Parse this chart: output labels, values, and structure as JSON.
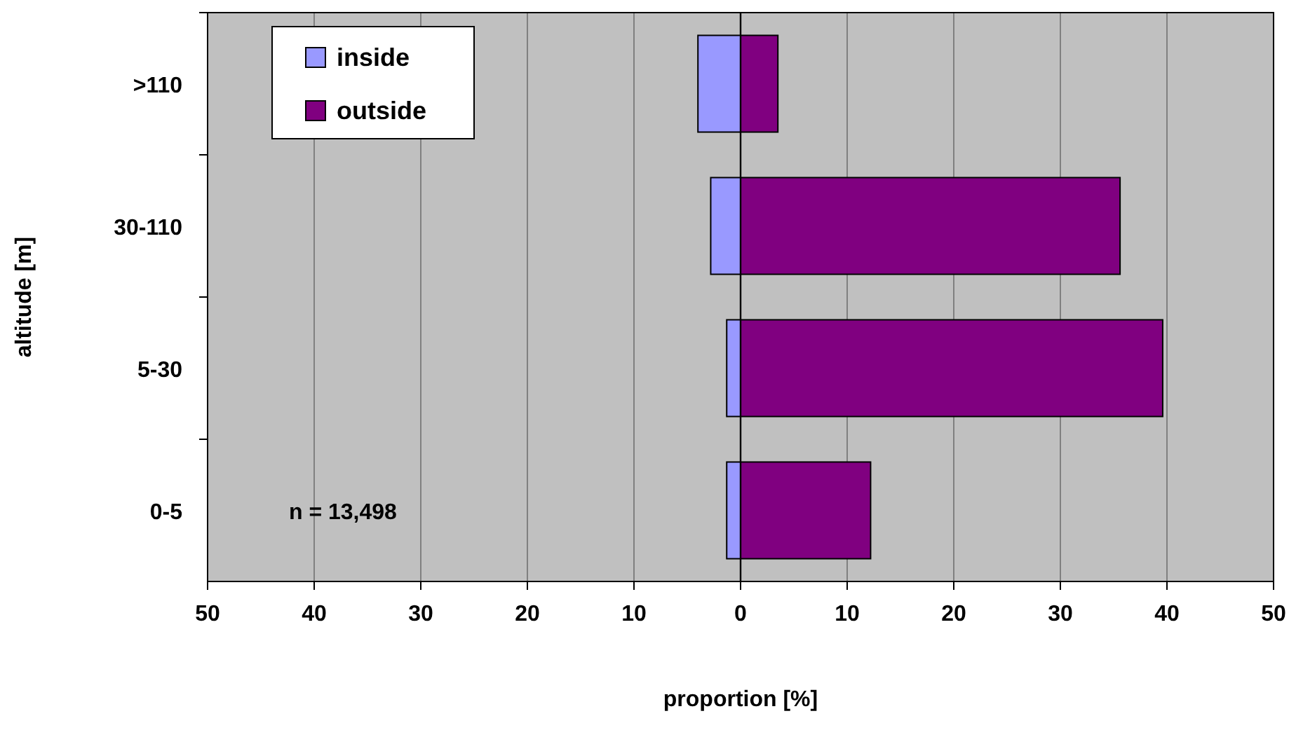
{
  "chart_data": {
    "type": "bar",
    "orientation": "horizontal",
    "stacked": true,
    "xlabel": "proportion [%]",
    "ylabel": "altitude [m]",
    "categories": [
      ">110",
      "30-110",
      "5-30",
      "0-5"
    ],
    "series": [
      {
        "name": "inside",
        "color": "#9999ff",
        "values": [
          -4.0,
          -2.8,
          -1.3,
          -1.3
        ]
      },
      {
        "name": "outside",
        "color": "#800080",
        "values": [
          3.5,
          35.6,
          39.6,
          12.2
        ]
      }
    ],
    "xlim": [
      -50,
      50
    ],
    "xticks": [
      {
        "value": -50,
        "label": "50"
      },
      {
        "value": -40,
        "label": "40"
      },
      {
        "value": -30,
        "label": "30"
      },
      {
        "value": -20,
        "label": "20"
      },
      {
        "value": -10,
        "label": "10"
      },
      0,
      10,
      20,
      30,
      40,
      50
    ],
    "grid": "x",
    "legend": "top left",
    "annotations": [
      "n = 13,498"
    ]
  }
}
